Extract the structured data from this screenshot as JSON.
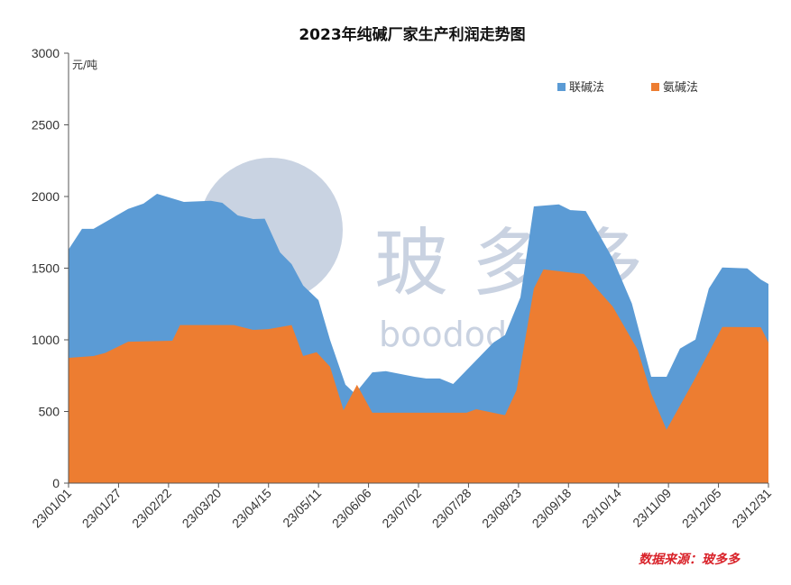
{
  "chart_data": {
    "type": "area",
    "title": "2023年纯碱厂家生产利润走势图",
    "ylabel": "元/吨",
    "xlabel": "",
    "ylim": [
      0,
      3000
    ],
    "yticks": [
      0,
      500,
      1000,
      1500,
      2000,
      2500,
      3000
    ],
    "x_unit": "days since 2023-01-01",
    "xlim": [
      0,
      364
    ],
    "xticks": [
      {
        "day": 0,
        "label": "23/01/01"
      },
      {
        "day": 26,
        "label": "23/01/27"
      },
      {
        "day": 52,
        "label": "23/02/22"
      },
      {
        "day": 78,
        "label": "23/03/20"
      },
      {
        "day": 104,
        "label": "23/04/15"
      },
      {
        "day": 130,
        "label": "23/05/11"
      },
      {
        "day": 156,
        "label": "23/06/06"
      },
      {
        "day": 182,
        "label": "23/07/02"
      },
      {
        "day": 208,
        "label": "23/07/28"
      },
      {
        "day": 234,
        "label": "23/08/23"
      },
      {
        "day": 260,
        "label": "23/09/18"
      },
      {
        "day": 286,
        "label": "23/10/14"
      },
      {
        "day": 312,
        "label": "23/11/09"
      },
      {
        "day": 338,
        "label": "23/12/05"
      },
      {
        "day": 364,
        "label": "23/12/31"
      }
    ],
    "grid": false,
    "legend_position": "top-right",
    "series": [
      {
        "name": "联碱法",
        "color": "#5b9bd5",
        "x": [
          0,
          7,
          13,
          31,
          39,
          46,
          60,
          74,
          80,
          88,
          96,
          102,
          110,
          116,
          122,
          130,
          136,
          144,
          149,
          158,
          165,
          180,
          186,
          193,
          200,
          221,
          227,
          235,
          242,
          255,
          261,
          269,
          283,
          293,
          303,
          311,
          318,
          326,
          333,
          340,
          353,
          360,
          364
        ],
        "values": [
          1631,
          1774,
          1774,
          1914,
          1950,
          2019,
          1962,
          1970,
          1956,
          1868,
          1843,
          1845,
          1610,
          1528,
          1379,
          1277,
          1000,
          687,
          624,
          773,
          782,
          742,
          730,
          730,
          692,
          981,
          1033,
          1296,
          1931,
          1945,
          1905,
          1899,
          1568,
          1253,
          742,
          742,
          939,
          1002,
          1358,
          1505,
          1499,
          1421,
          1390
        ]
      },
      {
        "name": "氨碱法",
        "color": "#ed7d31",
        "x": [
          0,
          13,
          19,
          31,
          54,
          58,
          86,
          96,
          104,
          116,
          122,
          129,
          136,
          143,
          150,
          158,
          180,
          207,
          212,
          227,
          233,
          242,
          247,
          268,
          283,
          296,
          303,
          311,
          325,
          340,
          360,
          364
        ],
        "values": [
          874,
          887,
          908,
          987,
          994,
          1103,
          1103,
          1069,
          1075,
          1103,
          887,
          914,
          813,
          509,
          686,
          491,
          491,
          491,
          516,
          474,
          648,
          1358,
          1491,
          1459,
          1233,
          931,
          624,
          373,
          711,
          1090,
          1088,
          981
        ]
      }
    ],
    "source": "数据来源：玻多多",
    "watermark": "玻多多 boodoodoo"
  }
}
